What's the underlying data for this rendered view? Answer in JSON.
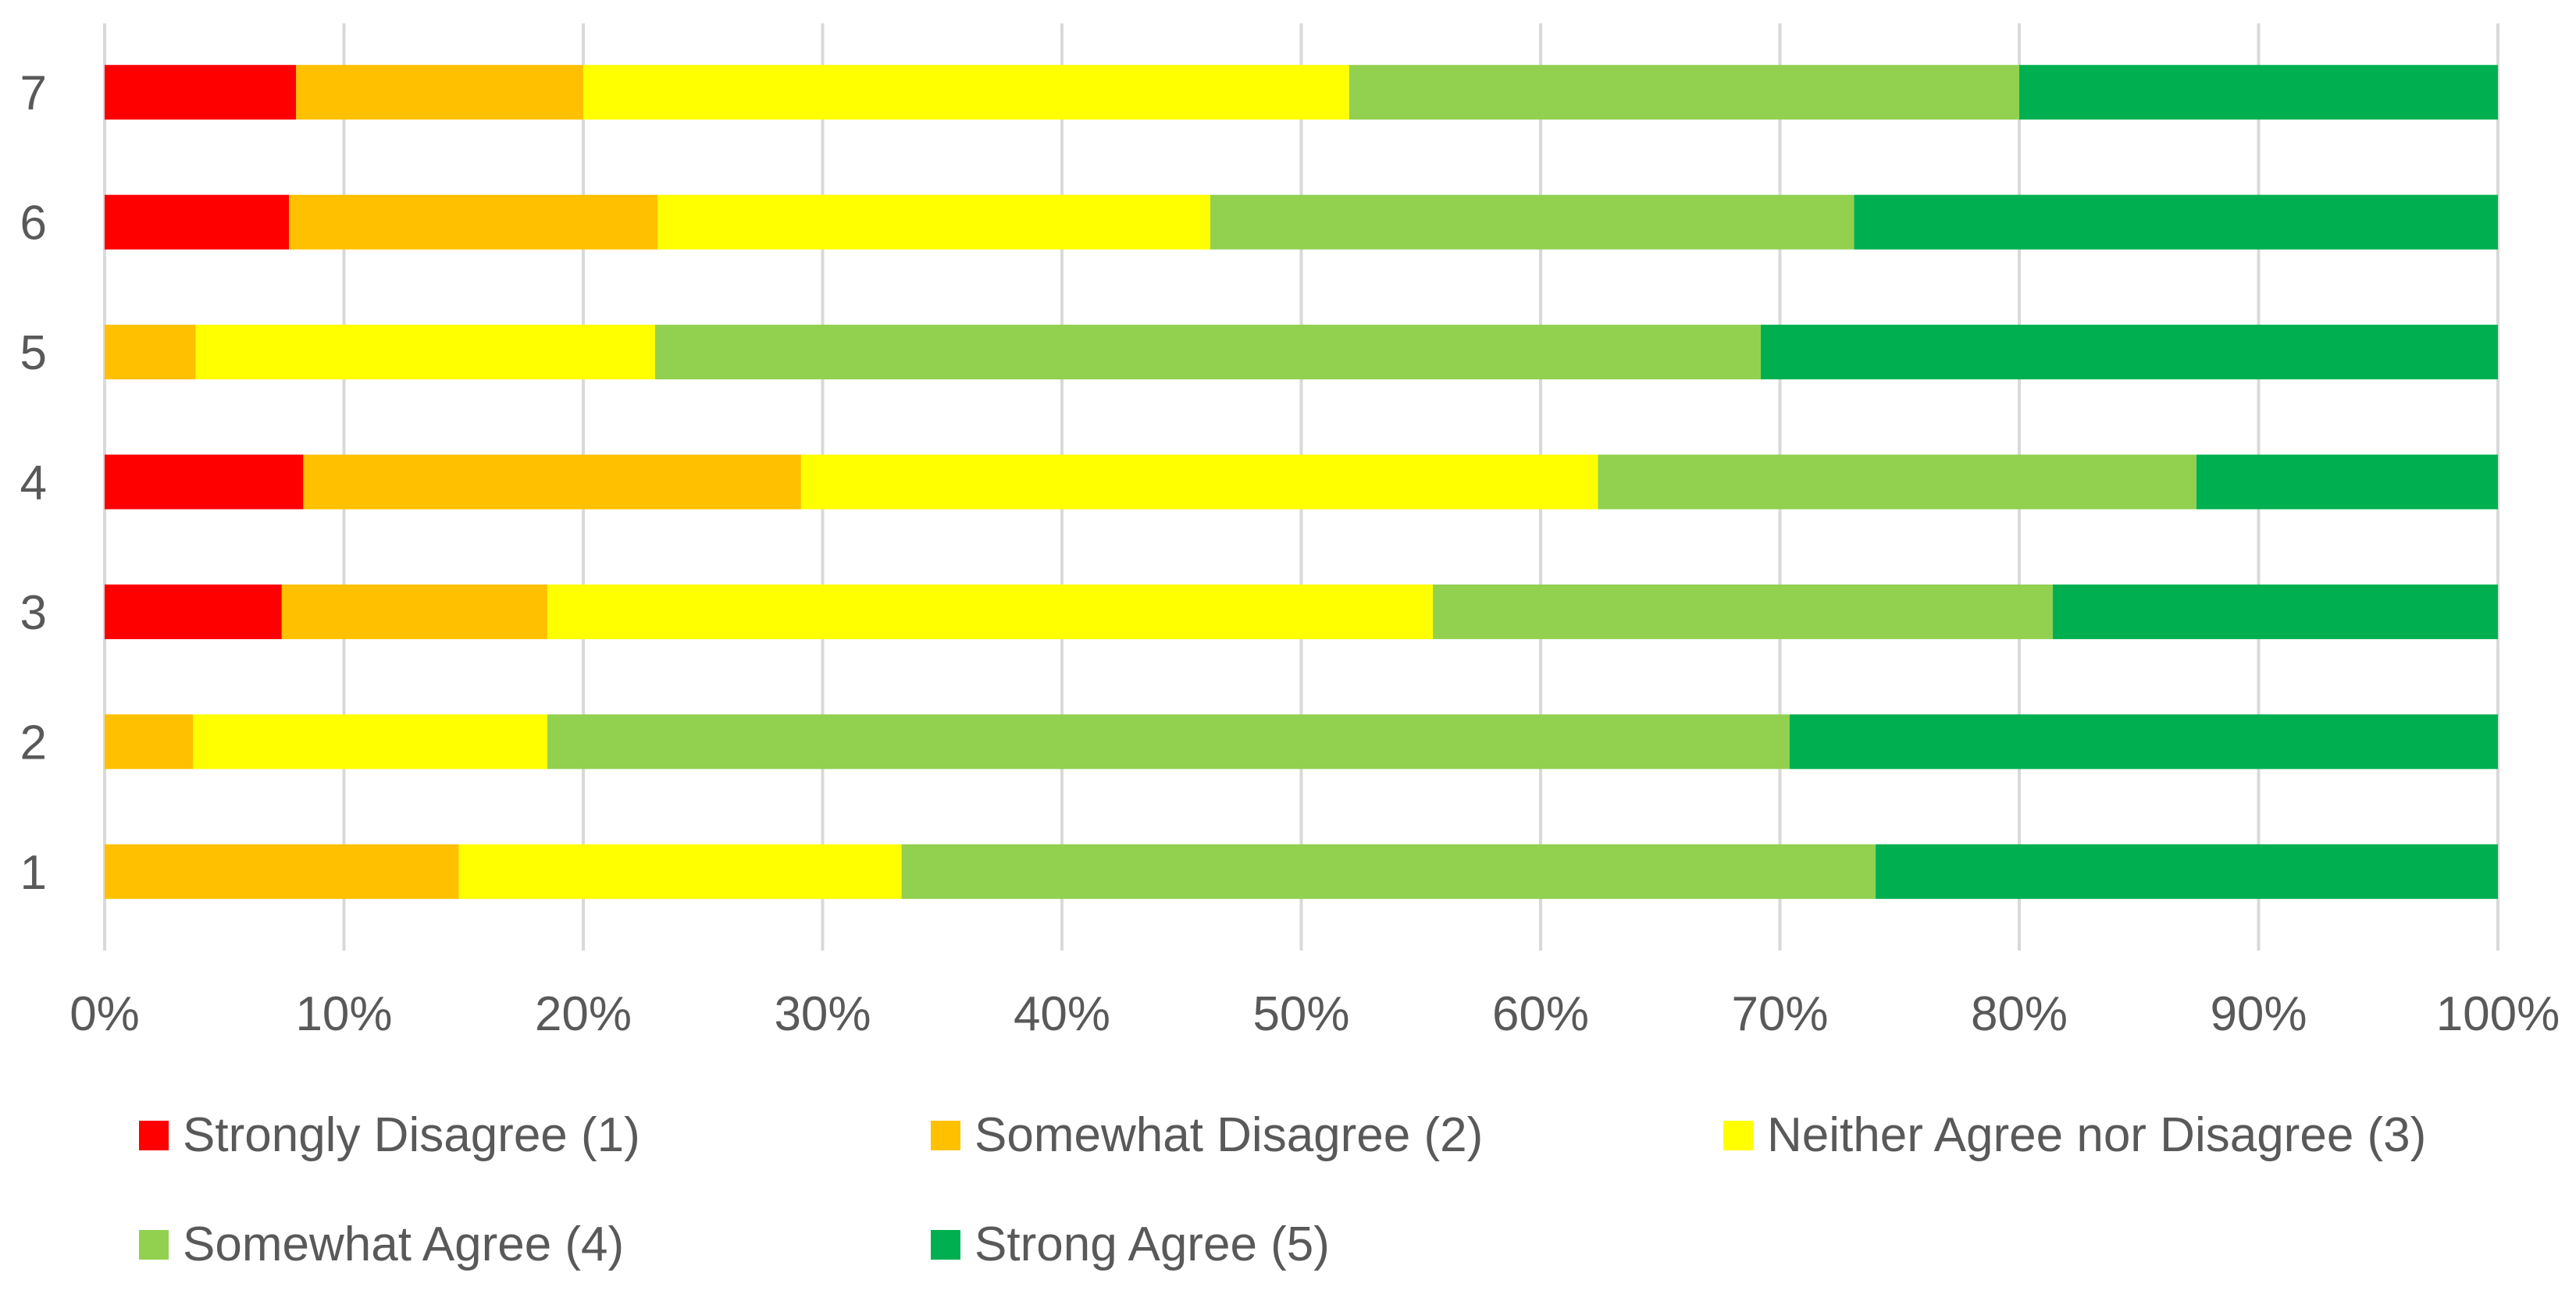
{
  "chart_data": {
    "type": "bar",
    "orientation": "horizontal",
    "stacked": true,
    "normalized": true,
    "title": "",
    "xlabel": "",
    "ylabel": "",
    "xlim": [
      0,
      100
    ],
    "x_ticks": [
      "0%",
      "10%",
      "20%",
      "30%",
      "40%",
      "50%",
      "60%",
      "70%",
      "80%",
      "90%",
      "100%"
    ],
    "categories": [
      "1",
      "2",
      "3",
      "4",
      "5",
      "6",
      "7"
    ],
    "grid": true,
    "legend_position": "bottom",
    "series": [
      {
        "name": "Strongly Disagree (1)",
        "color": "#ff0000",
        "values": [
          0,
          0,
          7.4,
          8.3,
          0,
          7.7,
          8.0
        ]
      },
      {
        "name": "Somewhat Disagree (2)",
        "color": "#ffc000",
        "values": [
          14.8,
          3.7,
          11.1,
          20.8,
          3.8,
          15.4,
          12.0
        ]
      },
      {
        "name": "Neither Agree nor Disagree (3)",
        "color": "#ffff00",
        "values": [
          18.5,
          14.8,
          37.0,
          33.3,
          19.2,
          23.1,
          32.0
        ]
      },
      {
        "name": "Somewhat Agree (4)",
        "color": "#92d050",
        "values": [
          40.7,
          51.9,
          25.9,
          25.0,
          46.2,
          26.9,
          28.0
        ]
      },
      {
        "name": "Strong Agree (5)",
        "color": "#00b050",
        "values": [
          26.0,
          29.6,
          18.6,
          12.6,
          30.8,
          26.9,
          20.0
        ]
      }
    ]
  }
}
